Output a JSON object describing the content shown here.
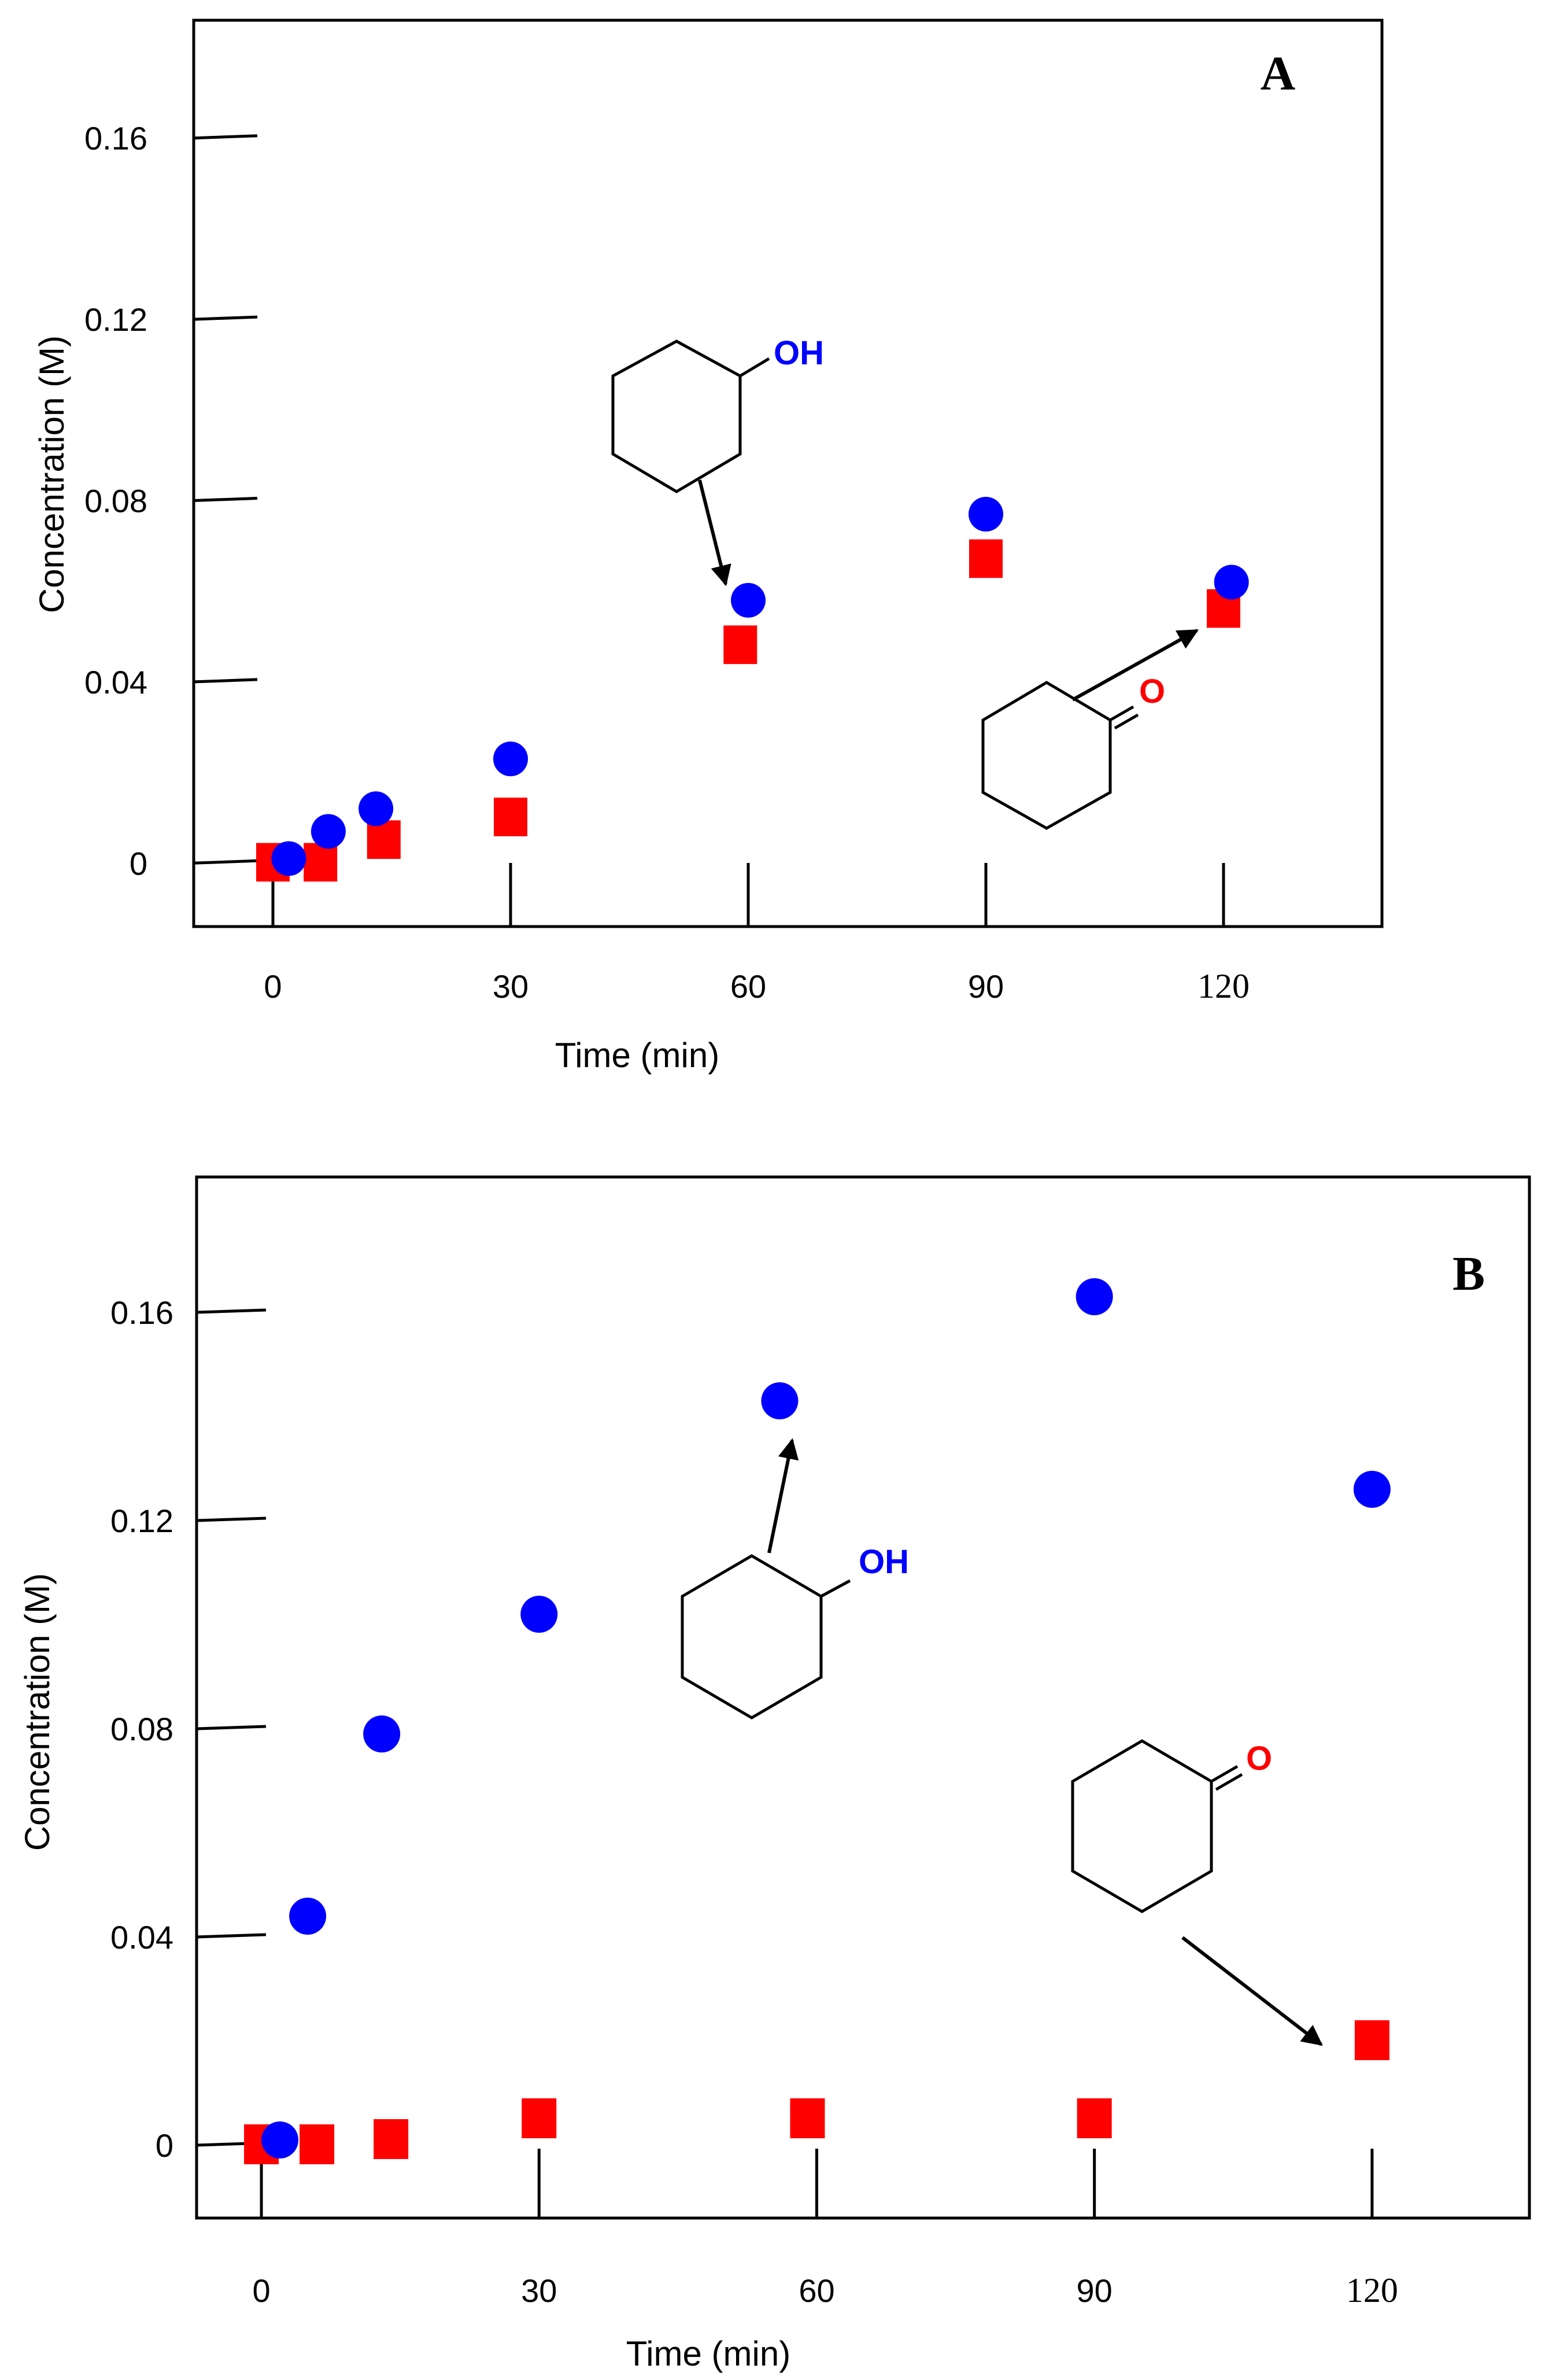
{
  "colors": {
    "cyclohexanol": "#0000ff",
    "cyclohexanone": "#ff0000",
    "axis": "#000000"
  },
  "chart_data": [
    {
      "panel": "A",
      "type": "scatter",
      "xlabel": "Time (min)",
      "ylabel": "Concentration (M)",
      "xlim": [
        -10,
        140
      ],
      "ylim": [
        -0.014,
        0.186
      ],
      "x_ticks": [
        0,
        30,
        60,
        90,
        120
      ],
      "x_tick_labels": [
        "0",
        "30",
        "60",
        "90",
        "120"
      ],
      "y_ticks": [
        0,
        0.04,
        0.08,
        0.12,
        0.16
      ],
      "y_tick_labels": [
        "0",
        "0.04",
        "0.08",
        "0.12",
        "0.16"
      ],
      "series": [
        {
          "name": "cyclohexanol",
          "marker": "circle",
          "points": [
            [
              2,
              0.001
            ],
            [
              7,
              0.007
            ],
            [
              13,
              0.012
            ],
            [
              30,
              0.023
            ],
            [
              60,
              0.058
            ],
            [
              90,
              0.077
            ],
            [
              121,
              0.062
            ]
          ]
        },
        {
          "name": "cyclohexanone",
          "marker": "square",
          "points": [
            [
              0,
              0.0
            ],
            [
              6,
              0.0
            ],
            [
              14,
              0.005
            ],
            [
              30,
              0.01
            ],
            [
              59,
              0.048
            ],
            [
              90,
              0.067
            ],
            [
              120,
              0.056
            ]
          ]
        }
      ],
      "annotations": [
        {
          "molecule": "cyclohexanol",
          "label": "OH"
        },
        {
          "molecule": "cyclohexanone",
          "label": "O"
        }
      ]
    },
    {
      "panel": "B",
      "type": "scatter",
      "xlabel": "Time (min)",
      "ylabel": "Concentration (M)",
      "xlim": [
        -7,
        137
      ],
      "ylim": [
        -0.014,
        0.186
      ],
      "x_ticks": [
        0,
        30,
        60,
        90,
        120
      ],
      "x_tick_labels": [
        "0",
        "30",
        "60",
        "90",
        "120"
      ],
      "y_ticks": [
        0,
        0.04,
        0.08,
        0.12,
        0.16
      ],
      "y_tick_labels": [
        "0",
        "0.04",
        "0.08",
        "0.12",
        "0.16"
      ],
      "series": [
        {
          "name": "cyclohexanol",
          "marker": "circle",
          "points": [
            [
              2,
              0.001
            ],
            [
              5,
              0.044
            ],
            [
              13,
              0.079
            ],
            [
              30,
              0.102
            ],
            [
              56,
              0.143
            ],
            [
              90,
              0.163
            ],
            [
              120,
              0.126
            ]
          ]
        },
        {
          "name": "cyclohexanone",
          "marker": "square",
          "points": [
            [
              0,
              0.0
            ],
            [
              6,
              0.0
            ],
            [
              14,
              0.001
            ],
            [
              30,
              0.005
            ],
            [
              59,
              0.005
            ],
            [
              90,
              0.005
            ],
            [
              120,
              0.02
            ]
          ]
        }
      ],
      "annotations": [
        {
          "molecule": "cyclohexanol",
          "label": "OH"
        },
        {
          "molecule": "cyclohexanone",
          "label": "O"
        }
      ]
    }
  ]
}
